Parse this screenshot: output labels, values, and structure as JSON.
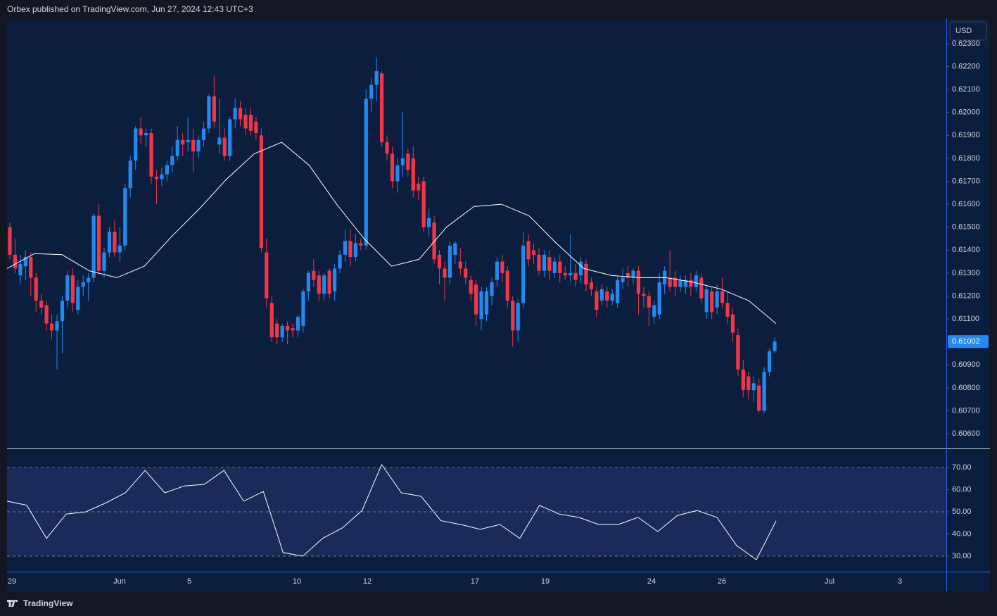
{
  "header": "Orbex published on TradingView.com, Jun 27, 2024 12:43 UTC+3",
  "footer": "TradingView",
  "currency": "USD",
  "chart_data": [
    {
      "type": "candlestick",
      "up_color": "#2189f0",
      "down_color": "#f23648",
      "ylim": [
        0.60536,
        0.62407
      ],
      "yticks": [
        {
          "value": 0.606,
          "label": "0.60600"
        },
        {
          "value": 0.607,
          "label": "0.60700"
        },
        {
          "value": 0.608,
          "label": "0.60800"
        },
        {
          "value": 0.609,
          "label": "0.60900"
        },
        {
          "value": 0.61,
          "label": "0.61000"
        },
        {
          "value": 0.611,
          "label": "0.61100"
        },
        {
          "value": 0.612,
          "label": "0.61200"
        },
        {
          "value": 0.613,
          "label": "0.61300"
        },
        {
          "value": 0.614,
          "label": "0.61400"
        },
        {
          "value": 0.615,
          "label": "0.61500"
        },
        {
          "value": 0.616,
          "label": "0.61600"
        },
        {
          "value": 0.617,
          "label": "0.61700"
        },
        {
          "value": 0.618,
          "label": "0.61800"
        },
        {
          "value": 0.619,
          "label": "0.61900"
        },
        {
          "value": 0.62,
          "label": "0.62000"
        },
        {
          "value": 0.621,
          "label": "0.62100"
        },
        {
          "value": 0.622,
          "label": "0.62200"
        },
        {
          "value": 0.623,
          "label": "0.62300"
        }
      ],
      "xtick_labels": [
        "29",
        "Jun",
        "5",
        "10",
        "12",
        "17",
        "19",
        "24",
        "26",
        "Jul",
        "3"
      ],
      "last_price": 0.61002,
      "ohlc": [
        [
          0.615,
          0.6152,
          0.6136,
          0.6138
        ],
        [
          0.6138,
          0.6145,
          0.613,
          0.6132
        ],
        [
          0.6129,
          0.6138,
          0.6125,
          0.6134
        ],
        [
          0.6133,
          0.614,
          0.6127,
          0.6137
        ],
        [
          0.6137,
          0.6139,
          0.612,
          0.6128
        ],
        [
          0.6128,
          0.613,
          0.6113,
          0.6118
        ],
        [
          0.6118,
          0.6121,
          0.6112,
          0.6115
        ],
        [
          0.6116,
          0.6118,
          0.6105,
          0.6108
        ],
        [
          0.6108,
          0.6112,
          0.6101,
          0.6105
        ],
        [
          0.6105,
          0.6112,
          0.6088,
          0.6109
        ],
        [
          0.6109,
          0.612,
          0.6095,
          0.6118
        ],
        [
          0.6118,
          0.6131,
          0.6115,
          0.6129
        ],
        [
          0.6129,
          0.6132,
          0.6113,
          0.6117
        ],
        [
          0.6114,
          0.6127,
          0.6112,
          0.6124
        ],
        [
          0.6124,
          0.6129,
          0.612,
          0.6126
        ],
        [
          0.6126,
          0.613,
          0.6118,
          0.6128
        ],
        [
          0.6128,
          0.6156,
          0.6126,
          0.6155
        ],
        [
          0.6155,
          0.616,
          0.6129,
          0.6131
        ],
        [
          0.6131,
          0.6141,
          0.6128,
          0.6139
        ],
        [
          0.6139,
          0.615,
          0.6137,
          0.6148
        ],
        [
          0.6148,
          0.6153,
          0.6137,
          0.6139
        ],
        [
          0.6139,
          0.615,
          0.6135,
          0.6142
        ],
        [
          0.6142,
          0.6169,
          0.614,
          0.6167
        ],
        [
          0.6167,
          0.6181,
          0.6163,
          0.6179
        ],
        [
          0.6179,
          0.6194,
          0.6175,
          0.6193
        ],
        [
          0.6193,
          0.6198,
          0.6186,
          0.619
        ],
        [
          0.619,
          0.6193,
          0.6185,
          0.6191
        ],
        [
          0.6191,
          0.6193,
          0.6169,
          0.6172
        ],
        [
          0.6172,
          0.6175,
          0.616,
          0.6171
        ],
        [
          0.6171,
          0.6176,
          0.6168,
          0.6173
        ],
        [
          0.6173,
          0.6179,
          0.617,
          0.6177
        ],
        [
          0.6177,
          0.6185,
          0.6174,
          0.6181
        ],
        [
          0.6181,
          0.6194,
          0.6179,
          0.6188
        ],
        [
          0.6188,
          0.6191,
          0.6181,
          0.6186
        ],
        [
          0.6187,
          0.6198,
          0.6183,
          0.6188
        ],
        [
          0.6188,
          0.6193,
          0.6174,
          0.6183
        ],
        [
          0.6183,
          0.619,
          0.618,
          0.6188
        ],
        [
          0.6188,
          0.6196,
          0.6185,
          0.6193
        ],
        [
          0.6193,
          0.6208,
          0.6191,
          0.6207
        ],
        [
          0.6207,
          0.6216,
          0.6193,
          0.6196
        ],
        [
          0.6186,
          0.6206,
          0.6182,
          0.6189
        ],
        [
          0.6189,
          0.6193,
          0.6179,
          0.6181
        ],
        [
          0.6181,
          0.6198,
          0.6179,
          0.6197
        ],
        [
          0.6197,
          0.6206,
          0.6193,
          0.6202
        ],
        [
          0.6202,
          0.6205,
          0.6194,
          0.6197
        ],
        [
          0.6199,
          0.6202,
          0.619,
          0.6193
        ],
        [
          0.6199,
          0.6202,
          0.619,
          0.6192
        ],
        [
          0.6196,
          0.6198,
          0.6188,
          0.6191
        ],
        [
          0.619,
          0.6193,
          0.6139,
          0.6141
        ],
        [
          0.6139,
          0.6145,
          0.6115,
          0.6119
        ],
        [
          0.6117,
          0.612,
          0.61,
          0.6102
        ],
        [
          0.6108,
          0.611,
          0.6099,
          0.6102
        ],
        [
          0.6102,
          0.6108,
          0.61,
          0.6107
        ],
        [
          0.6107,
          0.6109,
          0.6099,
          0.6105
        ],
        [
          0.6106,
          0.6108,
          0.6102,
          0.6105
        ],
        [
          0.6105,
          0.6112,
          0.6102,
          0.6111
        ],
        [
          0.6107,
          0.6123,
          0.6104,
          0.6122
        ],
        [
          0.6122,
          0.6131,
          0.6118,
          0.613
        ],
        [
          0.6131,
          0.6136,
          0.6124,
          0.6127
        ],
        [
          0.6129,
          0.6131,
          0.6118,
          0.6121
        ],
        [
          0.6121,
          0.613,
          0.6118,
          0.6129
        ],
        [
          0.6131,
          0.6132,
          0.6119,
          0.6121
        ],
        [
          0.6122,
          0.6134,
          0.6118,
          0.6132
        ],
        [
          0.6132,
          0.614,
          0.613,
          0.6138
        ],
        [
          0.6138,
          0.6149,
          0.6135,
          0.6144
        ],
        [
          0.6144,
          0.6149,
          0.6133,
          0.6137
        ],
        [
          0.6137,
          0.6147,
          0.6135,
          0.6143
        ],
        [
          0.6143,
          0.6145,
          0.614,
          0.6142
        ],
        [
          0.6142,
          0.621,
          0.614,
          0.6206
        ],
        [
          0.6206,
          0.6215,
          0.62,
          0.6212
        ],
        [
          0.6212,
          0.6224,
          0.6205,
          0.6218
        ],
        [
          0.6217,
          0.6218,
          0.6185,
          0.6187
        ],
        [
          0.6187,
          0.619,
          0.6179,
          0.6182
        ],
        [
          0.6182,
          0.6185,
          0.6167,
          0.617
        ],
        [
          0.617,
          0.618,
          0.6165,
          0.6177
        ],
        [
          0.6177,
          0.62,
          0.6172,
          0.618
        ],
        [
          0.6182,
          0.6184,
          0.6172,
          0.6175
        ],
        [
          0.618,
          0.6185,
          0.6163,
          0.6166
        ],
        [
          0.6169,
          0.6172,
          0.6162,
          0.6166
        ],
        [
          0.617,
          0.6172,
          0.6148,
          0.615
        ],
        [
          0.615,
          0.6158,
          0.6146,
          0.6154
        ],
        [
          0.6152,
          0.6155,
          0.6134,
          0.6136
        ],
        [
          0.6138,
          0.614,
          0.6125,
          0.6132
        ],
        [
          0.6132,
          0.6135,
          0.6118,
          0.6128
        ],
        [
          0.6128,
          0.6144,
          0.6125,
          0.6142
        ],
        [
          0.6138,
          0.6144,
          0.6134,
          0.6143
        ],
        [
          0.6135,
          0.6141,
          0.6129,
          0.6132
        ],
        [
          0.6132,
          0.6135,
          0.6125,
          0.6128
        ],
        [
          0.6127,
          0.6129,
          0.6118,
          0.6121
        ],
        [
          0.6125,
          0.6127,
          0.6107,
          0.6112
        ],
        [
          0.611,
          0.6124,
          0.6105,
          0.6122
        ],
        [
          0.6112,
          0.6124,
          0.6109,
          0.6122
        ],
        [
          0.612,
          0.6128,
          0.6116,
          0.6126
        ],
        [
          0.6127,
          0.6137,
          0.6124,
          0.6135
        ],
        [
          0.6135,
          0.6138,
          0.6126,
          0.613
        ],
        [
          0.6131,
          0.6133,
          0.6115,
          0.6118
        ],
        [
          0.6118,
          0.612,
          0.6098,
          0.6105
        ],
        [
          0.6105,
          0.6119,
          0.61,
          0.6117
        ],
        [
          0.6117,
          0.6148,
          0.6115,
          0.6142
        ],
        [
          0.6144,
          0.6147,
          0.6133,
          0.6136
        ],
        [
          0.614,
          0.6143,
          0.6134,
          0.6138
        ],
        [
          0.6138,
          0.6141,
          0.6129,
          0.6131
        ],
        [
          0.6131,
          0.614,
          0.6128,
          0.6138
        ],
        [
          0.6137,
          0.614,
          0.6127,
          0.6131
        ],
        [
          0.613,
          0.6137,
          0.6128,
          0.6135
        ],
        [
          0.6135,
          0.6138,
          0.6126,
          0.613
        ],
        [
          0.613,
          0.6133,
          0.6127,
          0.6129
        ],
        [
          0.6129,
          0.6147,
          0.6126,
          0.613
        ],
        [
          0.613,
          0.6134,
          0.6124,
          0.6127
        ],
        [
          0.6129,
          0.6137,
          0.6126,
          0.6135
        ],
        [
          0.6134,
          0.6136,
          0.6122,
          0.6125
        ],
        [
          0.6126,
          0.6128,
          0.612,
          0.6123
        ],
        [
          0.6122,
          0.6124,
          0.6111,
          0.6114
        ],
        [
          0.6118,
          0.6125,
          0.6116,
          0.6123
        ],
        [
          0.6122,
          0.6124,
          0.6115,
          0.6118
        ],
        [
          0.6118,
          0.6123,
          0.6116,
          0.6121
        ],
        [
          0.6117,
          0.6129,
          0.6115,
          0.6127
        ],
        [
          0.6126,
          0.6132,
          0.6123,
          0.6128
        ],
        [
          0.613,
          0.6133,
          0.6124,
          0.6128
        ],
        [
          0.6128,
          0.6132,
          0.6125,
          0.6131
        ],
        [
          0.6131,
          0.6133,
          0.6112,
          0.6121
        ],
        [
          0.6121,
          0.6124,
          0.6115,
          0.612
        ],
        [
          0.612,
          0.6122,
          0.6107,
          0.6115
        ],
        [
          0.6111,
          0.6118,
          0.6108,
          0.6116
        ],
        [
          0.6112,
          0.613,
          0.611,
          0.6126
        ],
        [
          0.6125,
          0.6133,
          0.6121,
          0.6131
        ],
        [
          0.6128,
          0.614,
          0.6122,
          0.6124
        ],
        [
          0.6128,
          0.6131,
          0.612,
          0.6124
        ],
        [
          0.6124,
          0.6129,
          0.6122,
          0.6127
        ],
        [
          0.6124,
          0.6129,
          0.6121,
          0.6127
        ],
        [
          0.6127,
          0.613,
          0.612,
          0.6124
        ],
        [
          0.6124,
          0.6131,
          0.6122,
          0.6129
        ],
        [
          0.6128,
          0.613,
          0.6117,
          0.6119
        ],
        [
          0.6113,
          0.6125,
          0.611,
          0.6123
        ],
        [
          0.6122,
          0.6124,
          0.611,
          0.6113
        ],
        [
          0.6115,
          0.6125,
          0.6112,
          0.6122
        ],
        [
          0.6122,
          0.6128,
          0.6115,
          0.6117
        ],
        [
          0.6117,
          0.6122,
          0.6108,
          0.6111
        ],
        [
          0.6112,
          0.6115,
          0.61,
          0.6104
        ],
        [
          0.6103,
          0.6106,
          0.6085,
          0.6088
        ],
        [
          0.6088,
          0.6092,
          0.6076,
          0.6079
        ],
        [
          0.6085,
          0.6087,
          0.6075,
          0.6079
        ],
        [
          0.6079,
          0.6085,
          0.6074,
          0.6082
        ],
        [
          0.6081,
          0.6084,
          0.6069,
          0.607
        ],
        [
          0.607,
          0.6089,
          0.6069,
          0.6087
        ],
        [
          0.6087,
          0.6097,
          0.6085,
          0.6096
        ],
        [
          0.6096,
          0.6102,
          0.6095,
          0.61002
        ]
      ],
      "sma": {
        "color": "#ffffff",
        "values": [
          0.6132,
          0.61385,
          0.6138,
          0.6131,
          0.6128,
          0.6133,
          0.6146,
          0.6158,
          0.6171,
          0.6182,
          0.6187,
          0.6177,
          0.616,
          0.6145,
          0.6133,
          0.6136,
          0.615,
          0.6159,
          0.616,
          0.6155,
          0.6143,
          0.6132,
          0.6129,
          0.6128,
          0.6128,
          0.6126,
          0.6123,
          0.6118,
          0.6108
        ]
      }
    },
    {
      "type": "line",
      "color": "#ffffff",
      "band_color": "#1b2b59",
      "ylim": [
        23.0,
        78.3
      ],
      "yticks": [
        {
          "value": 30,
          "label": "30.00"
        },
        {
          "value": 40,
          "label": "40.00"
        },
        {
          "value": 50,
          "label": "50.00"
        },
        {
          "value": 60,
          "label": "60.00"
        },
        {
          "value": 70,
          "label": "70.00"
        }
      ],
      "guide_lines": [
        30,
        50,
        70
      ],
      "values": [
        54.8,
        53,
        38,
        49,
        50,
        54,
        58.6,
        68.7,
        58.6,
        61.7,
        62.4,
        68.7,
        54.8,
        59.2,
        31.6,
        30,
        38,
        42.7,
        50.6,
        71.3,
        58.6,
        57,
        46,
        44.3,
        42.1,
        44.3,
        38,
        52.9,
        49,
        47.5,
        44.3,
        44.3,
        47.5,
        41.1,
        48.4,
        50.6,
        47.5,
        34.8,
        28.4,
        45.9
      ]
    }
  ]
}
